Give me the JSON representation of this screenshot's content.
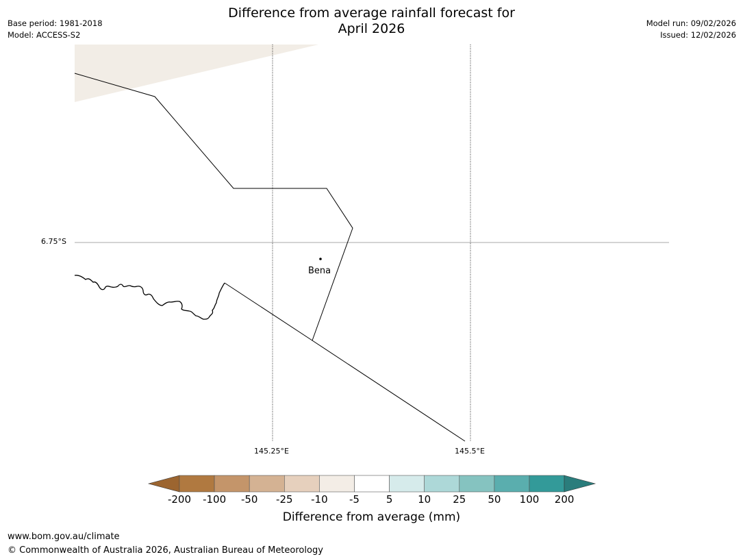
{
  "header": {
    "title_line1": "Difference from average rainfall forecast for",
    "title_line2": "April 2026",
    "base_period": "Base period: 1981-2018",
    "model": "Model: ACCESS-S2",
    "model_run": "Model run: 09/02/2026",
    "issued": "Issued: 12/02/2026"
  },
  "map": {
    "lat_label": "6.75°S",
    "lon_labels": [
      "145.25°E",
      "145.5°E"
    ],
    "place_label": "Bena",
    "shading_color": "#f2ede6",
    "border_color": "#000000",
    "grid_color": "#000000"
  },
  "legend": {
    "title": "Difference from average (mm)",
    "ticks": [
      "-200",
      "-100",
      "-50",
      "-25",
      "-10",
      "-5",
      "5",
      "10",
      "25",
      "50",
      "100",
      "200"
    ],
    "colors": [
      "#9c6530",
      "#b07940",
      "#c4956a",
      "#d4b293",
      "#e6d0bd",
      "#f3ede6",
      "#ffffff",
      "#d6ebeb",
      "#add8d8",
      "#85c3c0",
      "#5aaeae",
      "#339a99",
      "#2a7d7c"
    ]
  },
  "footer": {
    "url": "www.bom.gov.au/climate",
    "copyright": "© Commonwealth of Australia 2026, Australian Bureau of Meteorology"
  }
}
